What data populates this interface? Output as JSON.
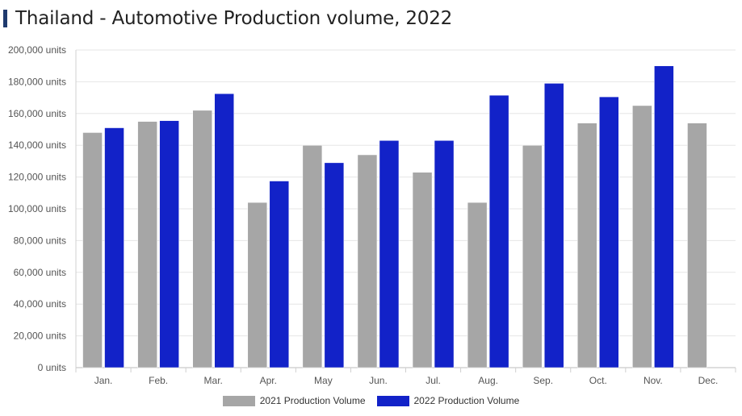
{
  "title": "Thailand - Automotive Production volume, 2022",
  "chart_data": {
    "type": "bar",
    "categories": [
      "Jan.",
      "Feb.",
      "Mar.",
      "Apr.",
      "May",
      "Jun.",
      "Jul.",
      "Aug.",
      "Sep.",
      "Oct.",
      "Nov.",
      "Dec."
    ],
    "series": [
      {
        "name": "2021 Production Volume",
        "color": "#a6a6a6",
        "values": [
          148000,
          155000,
          162000,
          104000,
          140000,
          134000,
          123000,
          104000,
          140000,
          154000,
          165000,
          154000
        ]
      },
      {
        "name": "2022 Production Volume",
        "color": "#1222c8",
        "values": [
          151000,
          155500,
          172500,
          117500,
          129000,
          143000,
          143000,
          171500,
          179000,
          170500,
          190000,
          null
        ]
      }
    ],
    "ylim": [
      0,
      200000
    ],
    "y_ticks": [
      0,
      20000,
      40000,
      60000,
      80000,
      100000,
      120000,
      140000,
      160000,
      180000,
      200000
    ],
    "y_tick_labels": [
      "0 units",
      "20,000 units",
      "40,000 units",
      "60,000 units",
      "80,000 units",
      "100,000 units",
      "120,000 units",
      "140,000 units",
      "160,000 units",
      "180,000 units",
      "200,000 units"
    ],
    "grid": true,
    "legend": "bottom"
  }
}
